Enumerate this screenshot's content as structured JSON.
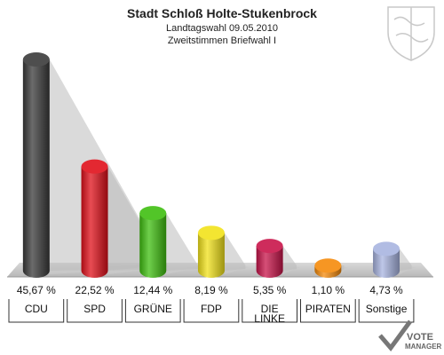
{
  "header": {
    "title": "Stadt Schloß Holte-Stukenbrock",
    "subtitle1": "Landtagswahl 09.05.2010",
    "subtitle2": "Zweitstimmen Briefwahl I"
  },
  "chart_data": {
    "type": "bar",
    "title": "Stadt Schloß Holte-Stukenbrock",
    "categories": [
      "CDU",
      "SPD",
      "GRÜNE",
      "FDP",
      "DIE LINKE",
      "PIRATEN",
      "Sonstige"
    ],
    "category_lines": [
      [
        "CDU"
      ],
      [
        "SPD"
      ],
      [
        "GRÜNE"
      ],
      [
        "FDP"
      ],
      [
        "DIE",
        "LINKE"
      ],
      [
        "PIRATEN"
      ],
      [
        "Sonstige"
      ]
    ],
    "values": [
      45.67,
      22.52,
      12.44,
      8.19,
      5.35,
      1.1,
      4.73
    ],
    "value_labels": [
      "45,67 %",
      "22,52 %",
      "12,44 %",
      "8,19 %",
      "5,35 %",
      "1,10 %",
      "4,73 %"
    ],
    "colors": [
      "#3a3a3a",
      "#e0101a",
      "#3fbf10",
      "#f2e21a",
      "#c8144a",
      "#f58a0a",
      "#a8b4e0"
    ],
    "ylim": [
      0,
      45.67
    ],
    "grid": false
  },
  "branding": {
    "logo_line1": "VOTE",
    "logo_line2": "MANAGER"
  }
}
